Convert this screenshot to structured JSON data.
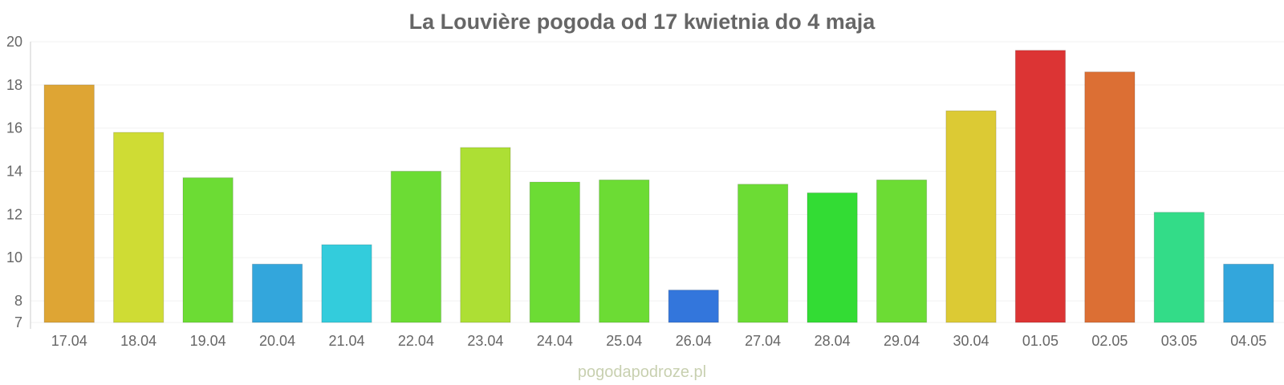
{
  "chart_data": {
    "type": "bar",
    "title": "La Louvière pogoda od 17 kwietnia do 4 maja",
    "xlabel": "",
    "ylabel": "",
    "ylim": [
      7,
      20
    ],
    "yticks": [
      "20",
      "18",
      "16",
      "14",
      "12",
      "10",
      "8",
      "7"
    ],
    "grid": true,
    "categories": [
      "17.04",
      "18.04",
      "19.04",
      "20.04",
      "21.04",
      "22.04",
      "23.04",
      "24.04",
      "25.04",
      "26.04",
      "27.04",
      "28.04",
      "29.04",
      "30.04",
      "01.05",
      "02.05",
      "03.05",
      "04.05"
    ],
    "values": [
      18.0,
      15.8,
      13.7,
      9.7,
      10.6,
      14.0,
      15.1,
      13.5,
      13.6,
      8.5,
      13.4,
      13.0,
      13.6,
      16.8,
      19.6,
      18.6,
      12.1,
      9.7
    ],
    "colors": [
      "#dea534",
      "#cfdc34",
      "#6cdc34",
      "#33a6dc",
      "#33ccdc",
      "#6cdc34",
      "#addf34",
      "#6cdc34",
      "#6cdc34",
      "#3376dc",
      "#6cdc34",
      "#33dc34",
      "#6cdc34",
      "#dcca34",
      "#dc3434",
      "#dc6f34",
      "#33dc88",
      "#33a6dc"
    ]
  },
  "watermark": "pogodapodroze.pl"
}
